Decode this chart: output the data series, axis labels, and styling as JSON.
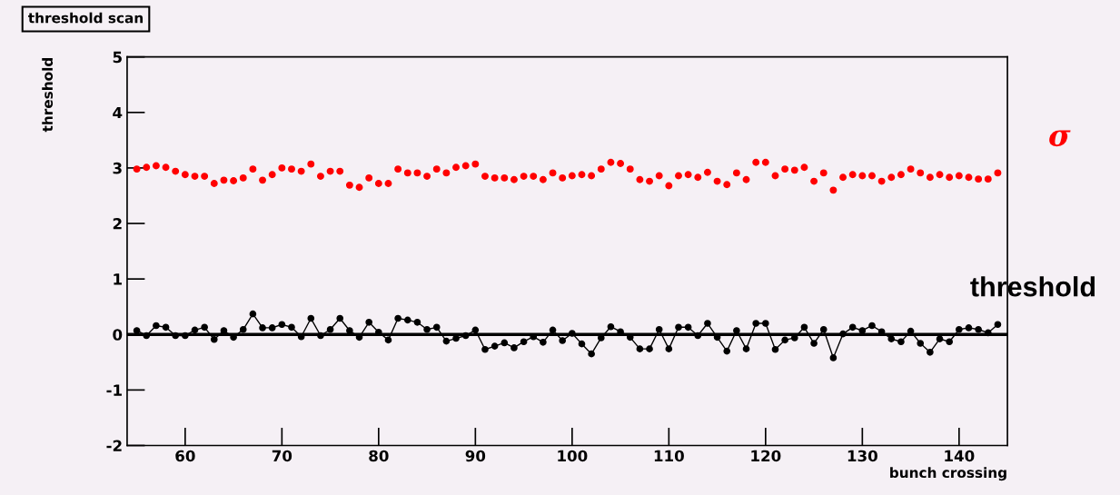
{
  "chart_data": {
    "type": "scatter",
    "title": "threshold scan",
    "xlabel": "bunch crossing",
    "ylabel": "threshold",
    "x": [
      55,
      56,
      57,
      58,
      59,
      60,
      61,
      62,
      63,
      64,
      65,
      66,
      67,
      68,
      69,
      70,
      71,
      72,
      73,
      74,
      75,
      76,
      77,
      78,
      79,
      80,
      81,
      82,
      83,
      84,
      85,
      86,
      87,
      88,
      89,
      90,
      91,
      92,
      93,
      94,
      95,
      96,
      97,
      98,
      99,
      100,
      101,
      102,
      103,
      104,
      105,
      106,
      107,
      108,
      109,
      110,
      111,
      112,
      113,
      114,
      115,
      116,
      117,
      118,
      119,
      120,
      121,
      122,
      123,
      124,
      125,
      126,
      127,
      128,
      129,
      130,
      131,
      132,
      133,
      134,
      135,
      136,
      137,
      138,
      139,
      140,
      141,
      142,
      143,
      144
    ],
    "series": [
      {
        "name": "σ",
        "color": "#ff0000",
        "marker": "circle",
        "values": [
          2.98,
          3.01,
          3.04,
          3.01,
          2.94,
          2.88,
          2.85,
          2.85,
          2.72,
          2.78,
          2.77,
          2.82,
          2.98,
          2.78,
          2.88,
          3.0,
          2.98,
          2.94,
          3.07,
          2.85,
          2.94,
          2.94,
          2.69,
          2.65,
          2.82,
          2.72,
          2.72,
          2.98,
          2.91,
          2.91,
          2.85,
          2.98,
          2.91,
          3.01,
          3.04,
          3.07,
          2.85,
          2.82,
          2.82,
          2.79,
          2.85,
          2.85,
          2.79,
          2.91,
          2.82,
          2.86,
          2.88,
          2.86,
          2.98,
          3.1,
          3.08,
          2.98,
          2.79,
          2.76,
          2.86,
          2.68,
          2.86,
          2.88,
          2.83,
          2.92,
          2.76,
          2.7,
          2.91,
          2.79,
          3.1,
          3.1,
          2.86,
          2.98,
          2.96,
          3.01,
          2.76,
          2.91,
          2.6,
          2.83,
          2.88,
          2.86,
          2.86,
          2.76,
          2.83,
          2.88,
          2.98,
          2.91,
          2.83,
          2.88,
          2.83,
          2.86,
          2.83,
          2.8,
          2.8,
          2.91
        ]
      },
      {
        "name": "threshold",
        "type": "line",
        "color": "#000000",
        "marker": "circle",
        "line_style": "solid",
        "values": [
          0.07,
          -0.02,
          0.16,
          0.13,
          -0.02,
          -0.02,
          0.08,
          0.13,
          -0.09,
          0.07,
          -0.05,
          0.09,
          0.37,
          0.12,
          0.12,
          0.18,
          0.13,
          -0.04,
          0.29,
          -0.02,
          0.09,
          0.29,
          0.07,
          -0.05,
          0.22,
          0.04,
          -0.1,
          0.29,
          0.26,
          0.22,
          0.09,
          0.13,
          -0.12,
          -0.07,
          -0.02,
          0.08,
          -0.27,
          -0.21,
          -0.15,
          -0.24,
          -0.13,
          -0.04,
          -0.14,
          0.08,
          -0.11,
          0.02,
          -0.17,
          -0.35,
          -0.06,
          0.14,
          0.05,
          -0.05,
          -0.26,
          -0.26,
          0.09,
          -0.26,
          0.13,
          0.13,
          -0.02,
          0.2,
          -0.05,
          -0.3,
          0.07,
          -0.26,
          0.2,
          0.2,
          -0.27,
          -0.1,
          -0.06,
          0.13,
          -0.16,
          0.09,
          -0.42,
          0.01,
          0.13,
          0.07,
          0.16,
          0.05,
          -0.08,
          -0.13,
          0.06,
          -0.16,
          -0.32,
          -0.08,
          -0.13,
          0.09,
          0.12,
          0.09,
          0.03,
          0.18
        ]
      }
    ],
    "ref_lines": [
      {
        "axis": "y",
        "value": 0,
        "color": "#000000",
        "line_style": "solid"
      }
    ],
    "xlim": [
      54,
      145
    ],
    "xticks": [
      60,
      70,
      80,
      90,
      100,
      110,
      120,
      130,
      140
    ],
    "ylim": [
      -2,
      5
    ],
    "yticks": [
      -2,
      -1,
      0,
      1,
      2,
      3,
      4,
      5
    ],
    "grid": false,
    "legend": false
  }
}
